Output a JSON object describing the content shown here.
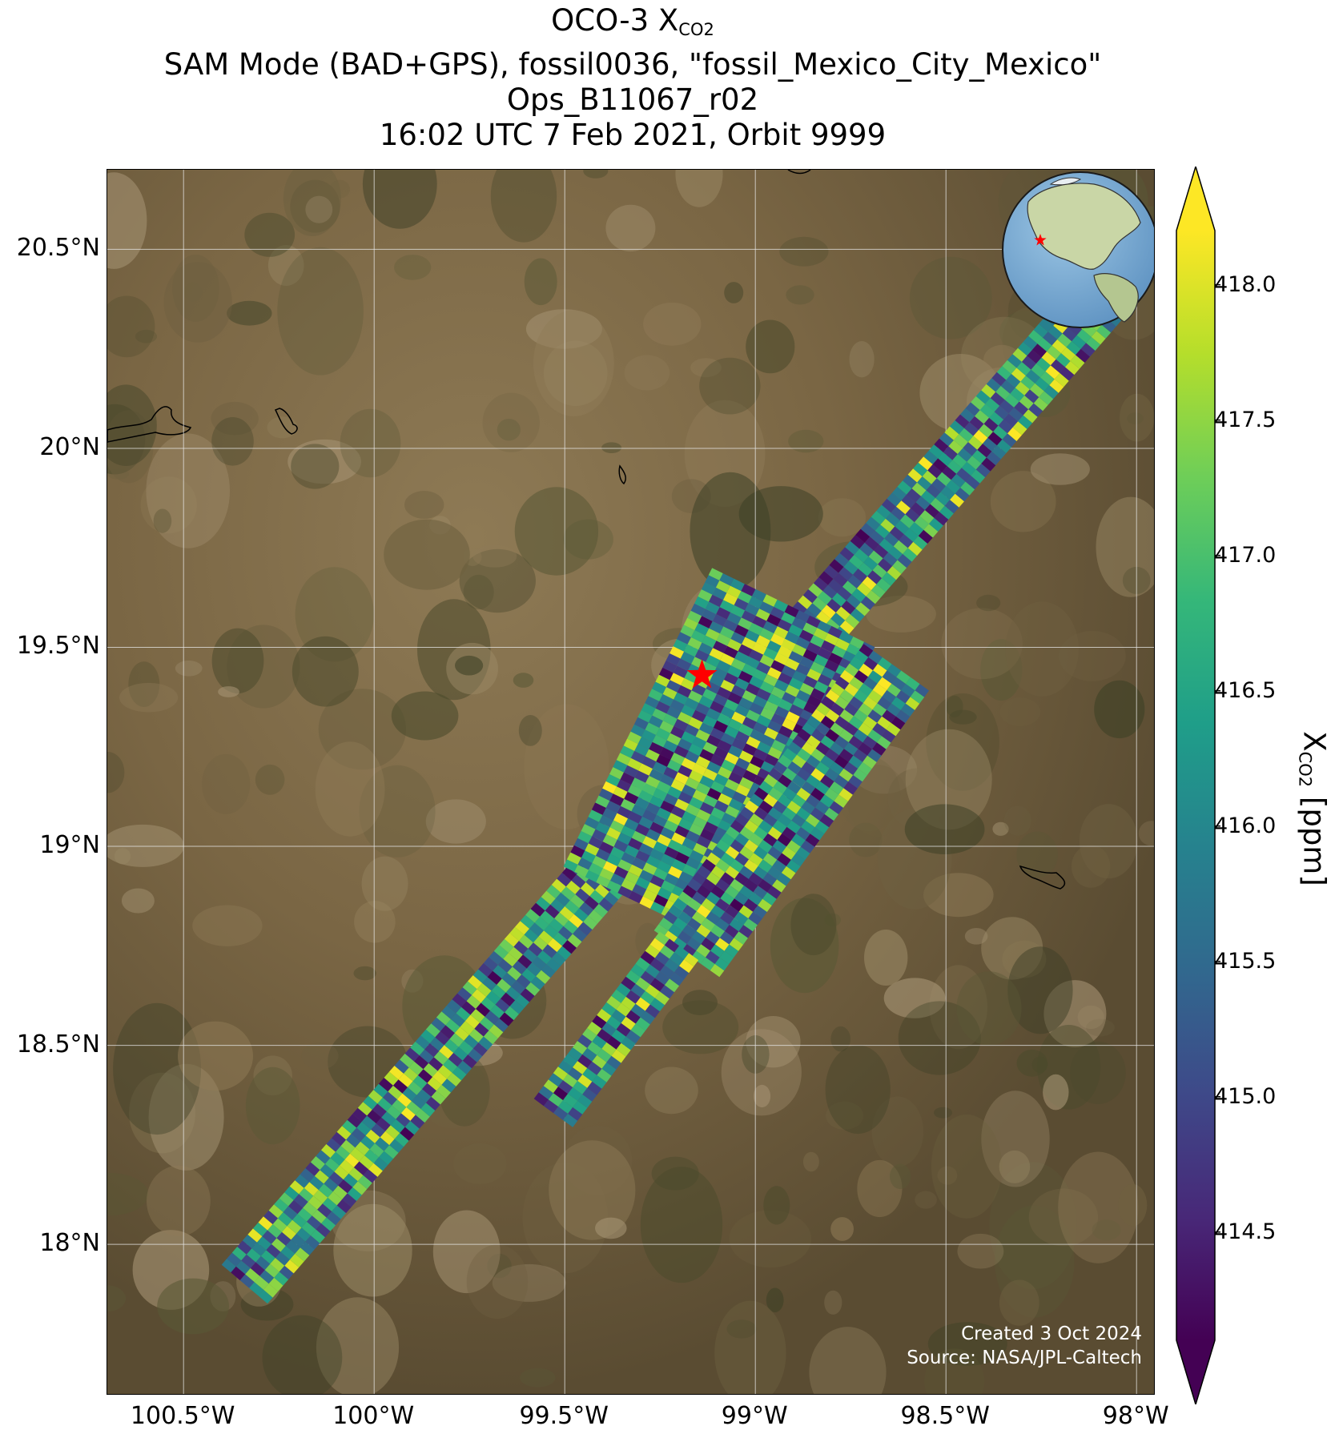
{
  "title": {
    "line1_prefix": "OCO-3 X",
    "line1_sub": "CO2",
    "line2": "SAM Mode (BAD+GPS), fossil0036, \"fossil_Mexico_City_Mexico\"",
    "line3": "Ops_B11067_r02",
    "line4": "16:02 UTC 7 Feb 2021, Orbit 9999"
  },
  "map": {
    "extent": {
      "lon_min": -100.7,
      "lon_max": -97.95,
      "lat_min": 17.62,
      "lat_max": 20.7
    },
    "lat_ticks": [
      {
        "value": 20.5,
        "label": "20.5°N"
      },
      {
        "value": 20.0,
        "label": "20°N"
      },
      {
        "value": 19.5,
        "label": "19.5°N"
      },
      {
        "value": 19.0,
        "label": "19°N"
      },
      {
        "value": 18.5,
        "label": "18.5°N"
      },
      {
        "value": 18.0,
        "label": "18°N"
      }
    ],
    "lon_ticks": [
      {
        "value": -100.5,
        "label": "100.5°W"
      },
      {
        "value": -100.0,
        "label": "100°W"
      },
      {
        "value": -99.5,
        "label": "99.5°W"
      },
      {
        "value": -99.0,
        "label": "99°W"
      },
      {
        "value": -98.5,
        "label": "98.5°W"
      },
      {
        "value": -98.0,
        "label": "98°W"
      }
    ],
    "gridlines": true,
    "target_marker": {
      "lon": -99.14,
      "lat": 19.43,
      "color": "#ff0000",
      "icon": "star-icon"
    },
    "inset": {
      "type": "globe",
      "icon": "globe-icon",
      "placement": "top-right"
    },
    "swaths": [
      {
        "name": "main",
        "start": {
          "lon": -100.34,
          "lat": 17.9
        },
        "end": {
          "lon": -98.1,
          "lat": 20.37
        },
        "width_deg": 0.15
      },
      {
        "name": "block-1",
        "start": {
          "lon": -99.29,
          "lat": 18.85
        },
        "end": {
          "lon": -98.9,
          "lat": 19.6
        },
        "width_deg": 0.45
      },
      {
        "name": "block-2",
        "start": {
          "lon": -99.18,
          "lat": 18.73
        },
        "end": {
          "lon": -98.63,
          "lat": 19.45
        },
        "width_deg": 0.2
      },
      {
        "name": "block-3",
        "start": {
          "lon": -99.53,
          "lat": 18.33
        },
        "end": {
          "lon": -99.2,
          "lat": 18.75
        },
        "width_deg": 0.12
      }
    ]
  },
  "colorbar": {
    "label_prefix": "X",
    "label_sub": "CO2",
    "label_suffix": " [ppm]",
    "min": 414.1,
    "max": 418.2,
    "extend": "both",
    "colormap": "viridis",
    "stops": [
      "#440154",
      "#482878",
      "#3e4989",
      "#31688e",
      "#26828e",
      "#1f9e89",
      "#35b779",
      "#6ece58",
      "#b5de2b",
      "#fde725"
    ],
    "ticks": [
      {
        "value": 418.0,
        "label": "418.0"
      },
      {
        "value": 417.5,
        "label": "417.5"
      },
      {
        "value": 417.0,
        "label": "417.0"
      },
      {
        "value": 416.5,
        "label": "416.5"
      },
      {
        "value": 416.0,
        "label": "416.0"
      },
      {
        "value": 415.5,
        "label": "415.5"
      },
      {
        "value": 415.0,
        "label": "415.0"
      },
      {
        "value": 414.5,
        "label": "414.5"
      }
    ]
  },
  "credits": {
    "created": "Created 3 Oct 2024",
    "source": "Source: NASA/JPL-Caltech"
  }
}
